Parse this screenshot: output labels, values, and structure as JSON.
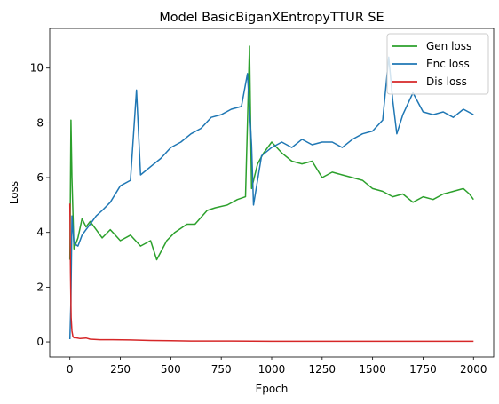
{
  "chart_data": {
    "type": "line",
    "title": "Model BasicBiganXEntropyTTUR SE",
    "xlabel": "Epoch",
    "ylabel": "Loss",
    "xlim": [
      -100,
      2100
    ],
    "ylim": [
      -0.55,
      11.45
    ],
    "xticks": [
      0,
      250,
      500,
      750,
      1000,
      1250,
      1500,
      1750,
      2000
    ],
    "yticks": [
      0,
      2,
      4,
      6,
      8,
      10
    ],
    "legend_position": "top-right",
    "grid": false,
    "series": [
      {
        "name": "Gen loss",
        "color": "#2ca02c",
        "x": [
          0,
          5,
          10,
          20,
          40,
          60,
          80,
          100,
          130,
          160,
          200,
          250,
          300,
          350,
          400,
          430,
          480,
          520,
          580,
          620,
          680,
          720,
          780,
          830,
          870,
          890,
          900,
          930,
          960,
          1000,
          1050,
          1100,
          1150,
          1200,
          1250,
          1300,
          1350,
          1400,
          1450,
          1500,
          1550,
          1600,
          1650,
          1700,
          1750,
          1800,
          1850,
          1900,
          1950,
          1980,
          2000
        ],
        "values": [
          3.0,
          8.1,
          6.0,
          3.4,
          3.8,
          4.5,
          4.2,
          4.4,
          4.1,
          3.8,
          4.1,
          3.7,
          3.9,
          3.5,
          3.7,
          3.0,
          3.7,
          4.0,
          4.3,
          4.3,
          4.8,
          4.9,
          5.0,
          5.2,
          5.3,
          10.8,
          5.6,
          6.5,
          6.9,
          7.3,
          6.9,
          6.6,
          6.5,
          6.6,
          6.0,
          6.2,
          6.1,
          6.0,
          5.9,
          5.6,
          5.5,
          5.3,
          5.4,
          5.1,
          5.3,
          5.2,
          5.4,
          5.5,
          5.6,
          5.4,
          5.2
        ]
      },
      {
        "name": "Enc loss",
        "color": "#1f77b4",
        "x": [
          0,
          5,
          10,
          20,
          40,
          60,
          80,
          100,
          130,
          160,
          200,
          250,
          300,
          330,
          350,
          400,
          450,
          500,
          550,
          600,
          650,
          700,
          750,
          800,
          850,
          880,
          900,
          910,
          950,
          1000,
          1050,
          1100,
          1150,
          1200,
          1250,
          1300,
          1350,
          1400,
          1450,
          1500,
          1550,
          1580,
          1600,
          1620,
          1650,
          1700,
          1750,
          1800,
          1850,
          1900,
          1950,
          2000
        ],
        "values": [
          0.1,
          1.5,
          4.6,
          3.6,
          3.5,
          3.9,
          4.1,
          4.3,
          4.6,
          4.8,
          5.1,
          5.7,
          5.9,
          9.2,
          6.1,
          6.4,
          6.7,
          7.1,
          7.3,
          7.6,
          7.8,
          8.2,
          8.3,
          8.5,
          8.6,
          9.8,
          7.2,
          5.0,
          6.8,
          7.1,
          7.3,
          7.1,
          7.4,
          7.2,
          7.3,
          7.3,
          7.1,
          7.4,
          7.6,
          7.7,
          8.1,
          10.4,
          8.8,
          7.6,
          8.3,
          9.1,
          8.4,
          8.3,
          8.4,
          8.2,
          8.5,
          8.3
        ]
      },
      {
        "name": "Dis loss",
        "color": "#d62728",
        "x": [
          0,
          3,
          6,
          10,
          15,
          20,
          30,
          50,
          80,
          100,
          150,
          200,
          300,
          400,
          500,
          600,
          800,
          1000,
          1200,
          1500,
          1800,
          2000
        ],
        "values": [
          5.05,
          2.5,
          0.9,
          0.4,
          0.2,
          0.15,
          0.15,
          0.12,
          0.14,
          0.1,
          0.08,
          0.08,
          0.07,
          0.05,
          0.04,
          0.03,
          0.03,
          0.02,
          0.02,
          0.02,
          0.02,
          0.02
        ]
      }
    ]
  }
}
